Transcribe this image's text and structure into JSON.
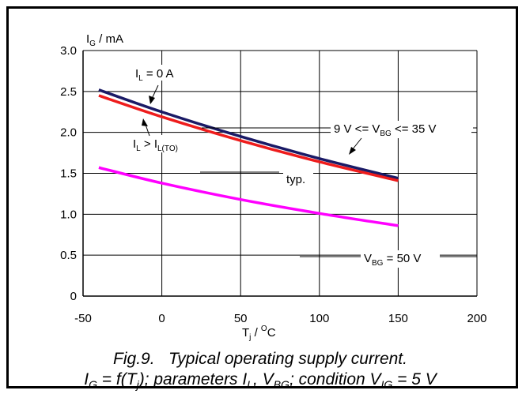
{
  "chart_data": {
    "type": "line",
    "ylabel": {
      "main": "I",
      "sub": "G",
      "rest": " / mA"
    },
    "xlabel": {
      "main": "T",
      "sub": "j",
      "mid": " / ",
      "sup": "O",
      "rest": "C"
    },
    "xlim": [
      -50,
      200
    ],
    "ylim": [
      0,
      3.0
    ],
    "x_ticks": [
      -50,
      0,
      50,
      100,
      150,
      200
    ],
    "x_tick_labels": [
      "-50",
      "0",
      "50",
      "100",
      "150",
      "200"
    ],
    "y_ticks": [
      0,
      0.5,
      1.0,
      1.5,
      2.0,
      2.5,
      3.0
    ],
    "y_tick_labels": [
      "0",
      "0.5",
      "1.0",
      "1.5",
      "2.0",
      "2.5",
      "3.0"
    ],
    "grid": true,
    "series": [
      {
        "key": "il0",
        "color": "#1a1a66",
        "x": [
          -40,
          0,
          50,
          100,
          150
        ],
        "y": [
          2.52,
          2.25,
          1.95,
          1.68,
          1.44
        ]
      },
      {
        "key": "ilto",
        "color": "#ee1c1c",
        "x": [
          -40,
          0,
          50,
          100,
          150
        ],
        "y": [
          2.45,
          2.19,
          1.9,
          1.64,
          1.41
        ]
      },
      {
        "key": "vbg50",
        "color": "#ff00ff",
        "x": [
          -40,
          0,
          50,
          100,
          150
        ],
        "y": [
          1.57,
          1.38,
          1.18,
          1.01,
          0.86
        ]
      }
    ],
    "annotations": {
      "il0": {
        "main": "I",
        "sub": "L",
        "rest": " = 0 A"
      },
      "ilto": {
        "main": "I",
        "sub": "L",
        "mid": " > I",
        "sub2": "L(TO)"
      },
      "range": {
        "pre": "9 V <= V",
        "sub": "BG",
        "rest": " <= 35 V"
      },
      "typ": "typ.",
      "vbg50": {
        "main": "V",
        "sub": "BG",
        "rest": " = 50 V"
      }
    }
  },
  "caption": {
    "line1": "Fig.9.   Typical operating supply current.",
    "line2": {
      "t1": "I",
      "s1": "G",
      "t2": " = f(T",
      "s2": "j",
      "t3": "); parameters I",
      "s3": "L",
      "t4": ", V",
      "s4": "BG",
      "t5": "; condition V",
      "s5": "IG",
      "t6": " = 5 V"
    }
  }
}
